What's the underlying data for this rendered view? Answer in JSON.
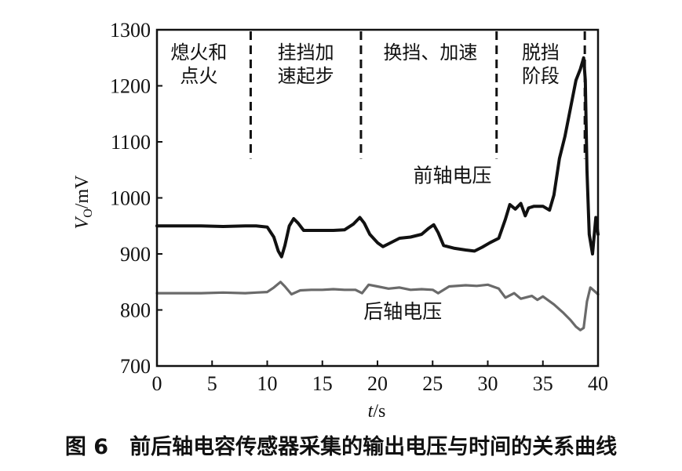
{
  "caption": "图 6　前后轴电容传感器采集的输出电压与时间的关系曲线",
  "chart_data": {
    "type": "line",
    "xlabel_italic": "t",
    "xlabel_unit": "/s",
    "ylabel_main": "V",
    "ylabel_sub": "O",
    "ylabel_unit": "/mV",
    "xlim": [
      0,
      40
    ],
    "ylim": [
      700,
      1300
    ],
    "xticks": [
      0,
      5,
      10,
      15,
      20,
      25,
      30,
      35,
      40
    ],
    "yticks": [
      700,
      800,
      900,
      1000,
      1100,
      1200,
      1300
    ],
    "grid": false,
    "phase_boundaries": [
      8.5,
      18.5,
      30.8,
      38.8
    ],
    "phase_labels": [
      {
        "lines": [
          "熄火和",
          "点火"
        ],
        "x": 3.8
      },
      {
        "lines": [
          "挂挡加",
          "速起步"
        ],
        "x": 13.5
      },
      {
        "lines": [
          "换挡、加速"
        ],
        "x": 24.8
      },
      {
        "lines": [
          "脱挡",
          "阶段"
        ],
        "x": 34.8
      }
    ],
    "series": [
      {
        "name": "前轴电压",
        "label_x": 26.8,
        "label_y": 1028,
        "color": "#111111",
        "x": [
          0,
          2,
          4,
          6,
          8,
          9,
          10,
          10.6,
          11.0,
          11.3,
          11.6,
          12.0,
          12.4,
          12.8,
          13.3,
          14,
          15,
          16,
          17,
          17.8,
          18.4,
          18.8,
          19.3,
          20,
          20.5,
          21,
          22,
          23,
          24,
          24.6,
          25.1,
          25.5,
          26,
          27,
          28,
          28.8,
          29.5,
          30.2,
          31,
          31.6,
          32.0,
          32.5,
          33.0,
          33.4,
          33.7,
          34.2,
          35,
          35.6,
          36.0,
          36.5,
          37,
          37.5,
          38.0,
          38.4,
          38.7,
          38.85,
          39.0,
          39.2,
          39.5,
          39.8,
          40
        ],
        "y": [
          950,
          950,
          950,
          949,
          950,
          950,
          948,
          930,
          905,
          895,
          915,
          950,
          963,
          955,
          942,
          942,
          942,
          942,
          943,
          953,
          965,
          955,
          935,
          920,
          913,
          918,
          928,
          930,
          935,
          945,
          952,
          938,
          915,
          910,
          907,
          905,
          912,
          920,
          928,
          962,
          988,
          980,
          990,
          968,
          982,
          985,
          985,
          978,
          1005,
          1070,
          1110,
          1160,
          1210,
          1230,
          1250,
          1210,
          1050,
          935,
          900,
          965,
          935
        ]
      },
      {
        "name": "后轴电压",
        "label_x": 22.3,
        "label_y": 785,
        "color": "#6a6a6a",
        "x": [
          0,
          2,
          4,
          6,
          8,
          9,
          10,
          10.6,
          11.2,
          11.6,
          12.2,
          13,
          14,
          15,
          16,
          17,
          18,
          18.6,
          19.2,
          20,
          21,
          22,
          23,
          24,
          25,
          25.5,
          26.5,
          28,
          29,
          30,
          31,
          31.6,
          32.4,
          33,
          34,
          34.5,
          35,
          36,
          36.8,
          37.5,
          38.0,
          38.4,
          38.7,
          39.0,
          39.3,
          39.6,
          40
        ],
        "y": [
          830,
          830,
          830,
          831,
          830,
          831,
          832,
          840,
          850,
          842,
          828,
          835,
          836,
          836,
          837,
          836,
          836,
          830,
          845,
          842,
          838,
          840,
          836,
          837,
          836,
          830,
          842,
          844,
          843,
          845,
          838,
          822,
          830,
          820,
          825,
          818,
          824,
          810,
          796,
          782,
          770,
          764,
          768,
          815,
          840,
          835,
          828
        ]
      }
    ]
  }
}
